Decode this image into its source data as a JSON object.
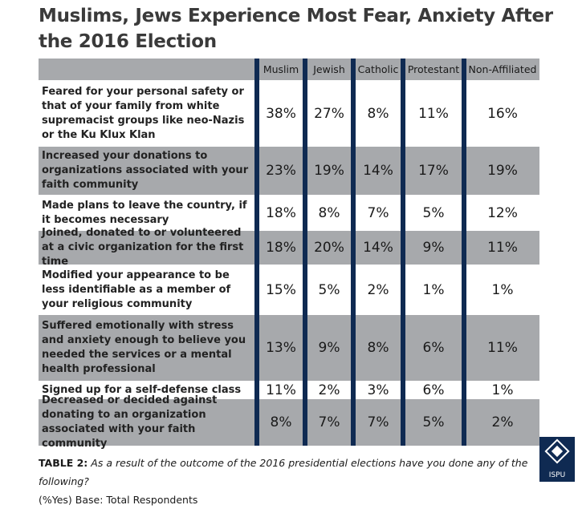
{
  "title": "Muslims, Jews Experience Most Fear, Anxiety After the 2016 Election",
  "table": {
    "columns": [
      "Muslim",
      "Jewish",
      "Catholic",
      "Protestant",
      "Non-Affiliated"
    ],
    "rows": [
      {
        "label": "Feared for your personal safety or that of your family from white supremacist groups like neo-Nazis or the Ku Klux Klan",
        "values": [
          "38%",
          "27%",
          "8%",
          "11%",
          "16%"
        ]
      },
      {
        "label": "Increased your donations to organizations associated with your faith community",
        "values": [
          "23%",
          "19%",
          "14%",
          "17%",
          "19%"
        ]
      },
      {
        "label": "Made plans to leave the country, if it becomes necessary",
        "values": [
          "18%",
          "8%",
          "7%",
          "5%",
          "12%"
        ]
      },
      {
        "label": "Joined, donated to or volunteered at a civic organization for the first time",
        "values": [
          "18%",
          "20%",
          "14%",
          "9%",
          "11%"
        ]
      },
      {
        "label": "Modified your appearance to be less identifiable as a member of your religious community",
        "values": [
          "15%",
          "5%",
          "2%",
          "1%",
          "1%"
        ]
      },
      {
        "label": "Suffered emotionally with stress and anxiety enough to believe you needed the services or a mental health professional",
        "values": [
          "13%",
          "9%",
          "8%",
          "6%",
          "11%"
        ]
      },
      {
        "label": "Signed up for a self-defense class",
        "values": [
          "11%",
          "2%",
          "3%",
          "6%",
          "1%"
        ]
      },
      {
        "label": "Decreased or decided against donating to an organization associated with your faith community",
        "values": [
          "8%",
          "7%",
          "7%",
          "5%",
          "2%"
        ]
      }
    ]
  },
  "caption": {
    "label": "TABLE 2:",
    "text": "As a result of the outcome of the 2016 presidential elections have you done any of the following?",
    "base": "(%Yes) Base: Total Respondents"
  },
  "logo": {
    "text": "ISPU"
  }
}
